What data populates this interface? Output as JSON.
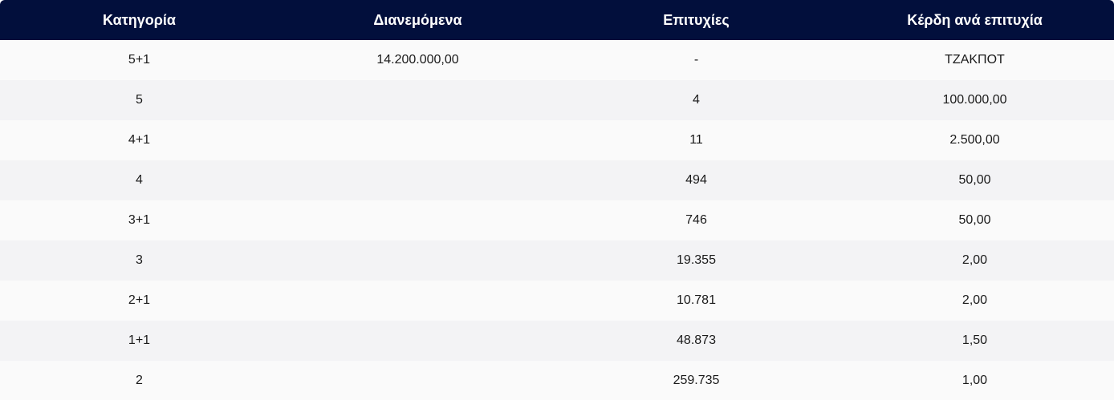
{
  "table": {
    "headers": [
      "Κατηγορία",
      "Διανεμόμενα",
      "Επιτυχίες",
      "Κέρδη ανά επιτυχία"
    ],
    "rows": [
      [
        "5+1",
        "14.200.000,00",
        "-",
        "ΤΖΑΚΠΟΤ"
      ],
      [
        "5",
        "",
        "4",
        "100.000,00"
      ],
      [
        "4+1",
        "",
        "11",
        "2.500,00"
      ],
      [
        "4",
        "",
        "494",
        "50,00"
      ],
      [
        "3+1",
        "",
        "746",
        "50,00"
      ],
      [
        "3",
        "",
        "19.355",
        "2,00"
      ],
      [
        "2+1",
        "",
        "10.781",
        "2,00"
      ],
      [
        "1+1",
        "",
        "48.873",
        "1,50"
      ],
      [
        "2",
        "",
        "259.735",
        "1,00"
      ]
    ]
  },
  "colors": {
    "header_bg": "#020f3c",
    "header_text": "#ffffff",
    "row_odd": "#fafafa",
    "row_even": "#f3f3f5"
  }
}
